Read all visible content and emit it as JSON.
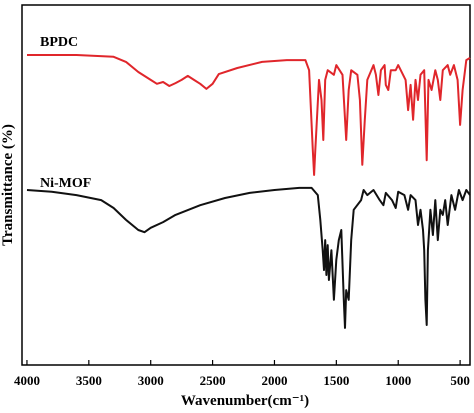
{
  "chart_data": {
    "type": "line",
    "x_label": "Wavenumber(cm⁻¹)",
    "y_label": "Transmittance (%)",
    "xlim": [
      4040,
      420
    ],
    "xticks": [
      4000,
      3500,
      3000,
      2500,
      2000,
      1500,
      1000,
      500
    ],
    "ylim": [
      0,
      100
    ],
    "series": [
      {
        "name": "BPDC",
        "color": "#e0262b",
        "x": [
          4000,
          3600,
          3300,
          3200,
          3100,
          3000,
          2950,
          2900,
          2850,
          2800,
          2750,
          2700,
          2650,
          2600,
          2550,
          2500,
          2450,
          2300,
          2100,
          1900,
          1750,
          1720,
          1690,
          1680,
          1670,
          1640,
          1620,
          1605,
          1590,
          1570,
          1520,
          1500,
          1450,
          1420,
          1400,
          1380,
          1330,
          1310,
          1290,
          1270,
          1250,
          1200,
          1180,
          1160,
          1140,
          1110,
          1100,
          1080,
          1060,
          1020,
          1000,
          940,
          920,
          900,
          880,
          860,
          840,
          820,
          790,
          770,
          755,
          730,
          700,
          680,
          660,
          640,
          600,
          580,
          550,
          520,
          500,
          480,
          450,
          420
        ],
        "values": [
          86.1,
          86.1,
          85.6,
          84.2,
          81.4,
          79.2,
          78.1,
          78.6,
          77.5,
          78.3,
          79.2,
          80.3,
          79.2,
          78.1,
          76.7,
          78.1,
          80.8,
          82.5,
          84.2,
          84.7,
          84.7,
          81.9,
          59.7,
          52.8,
          59.7,
          79.2,
          73.6,
          62.5,
          79.2,
          81.9,
          80.6,
          83.3,
          80.6,
          62.5,
          76.4,
          81.9,
          80.6,
          73.6,
          55.6,
          68.1,
          79.2,
          83.3,
          80.6,
          75,
          81.9,
          83.3,
          77.8,
          76.4,
          81.9,
          81.9,
          83.3,
          79.2,
          70.8,
          77.8,
          68.1,
          79.2,
          73.6,
          80.6,
          81.9,
          56.9,
          79.2,
          76.4,
          81.9,
          79.2,
          73.6,
          81.9,
          83.3,
          80.6,
          83.3,
          79.2,
          66.7,
          76.4,
          84.7,
          85.3
        ]
      },
      {
        "name": "Ni-MOF",
        "color": "#111111",
        "x": [
          4000,
          3800,
          3600,
          3400,
          3300,
          3200,
          3100,
          3050,
          3000,
          2900,
          2800,
          2600,
          2400,
          2200,
          2000,
          1800,
          1700,
          1650,
          1630,
          1610,
          1600,
          1590,
          1580,
          1570,
          1560,
          1540,
          1520,
          1500,
          1480,
          1460,
          1440,
          1430,
          1420,
          1400,
          1380,
          1360,
          1300,
          1280,
          1250,
          1200,
          1150,
          1120,
          1100,
          1050,
          1020,
          1000,
          950,
          920,
          900,
          860,
          840,
          820,
          800,
          790,
          780,
          770,
          760,
          740,
          720,
          700,
          680,
          660,
          640,
          620,
          600,
          570,
          540,
          510,
          480,
          450,
          420
        ],
        "values": [
          48.6,
          48.1,
          47.2,
          45.8,
          43.6,
          40.3,
          37.5,
          36.9,
          38.1,
          39.7,
          41.7,
          44.4,
          46.4,
          47.8,
          48.6,
          49.2,
          49.2,
          47.2,
          40.3,
          31.9,
          26.4,
          34.7,
          25,
          33.3,
          23.6,
          31.9,
          18.1,
          29.2,
          34.7,
          37.5,
          18.1,
          10.3,
          20.8,
          18.1,
          34.7,
          43.1,
          45.8,
          48.6,
          47.2,
          48.6,
          45.8,
          44.4,
          47.8,
          45.8,
          43.6,
          48.1,
          47.2,
          43.1,
          47.2,
          45.8,
          38.9,
          43.1,
          37.5,
          31.9,
          18.1,
          11.1,
          31.9,
          43.1,
          36.1,
          45.8,
          34.7,
          43.1,
          41.7,
          45.8,
          38.9,
          47.2,
          43.1,
          48.6,
          45.8,
          48.6,
          47.2
        ]
      }
    ]
  }
}
